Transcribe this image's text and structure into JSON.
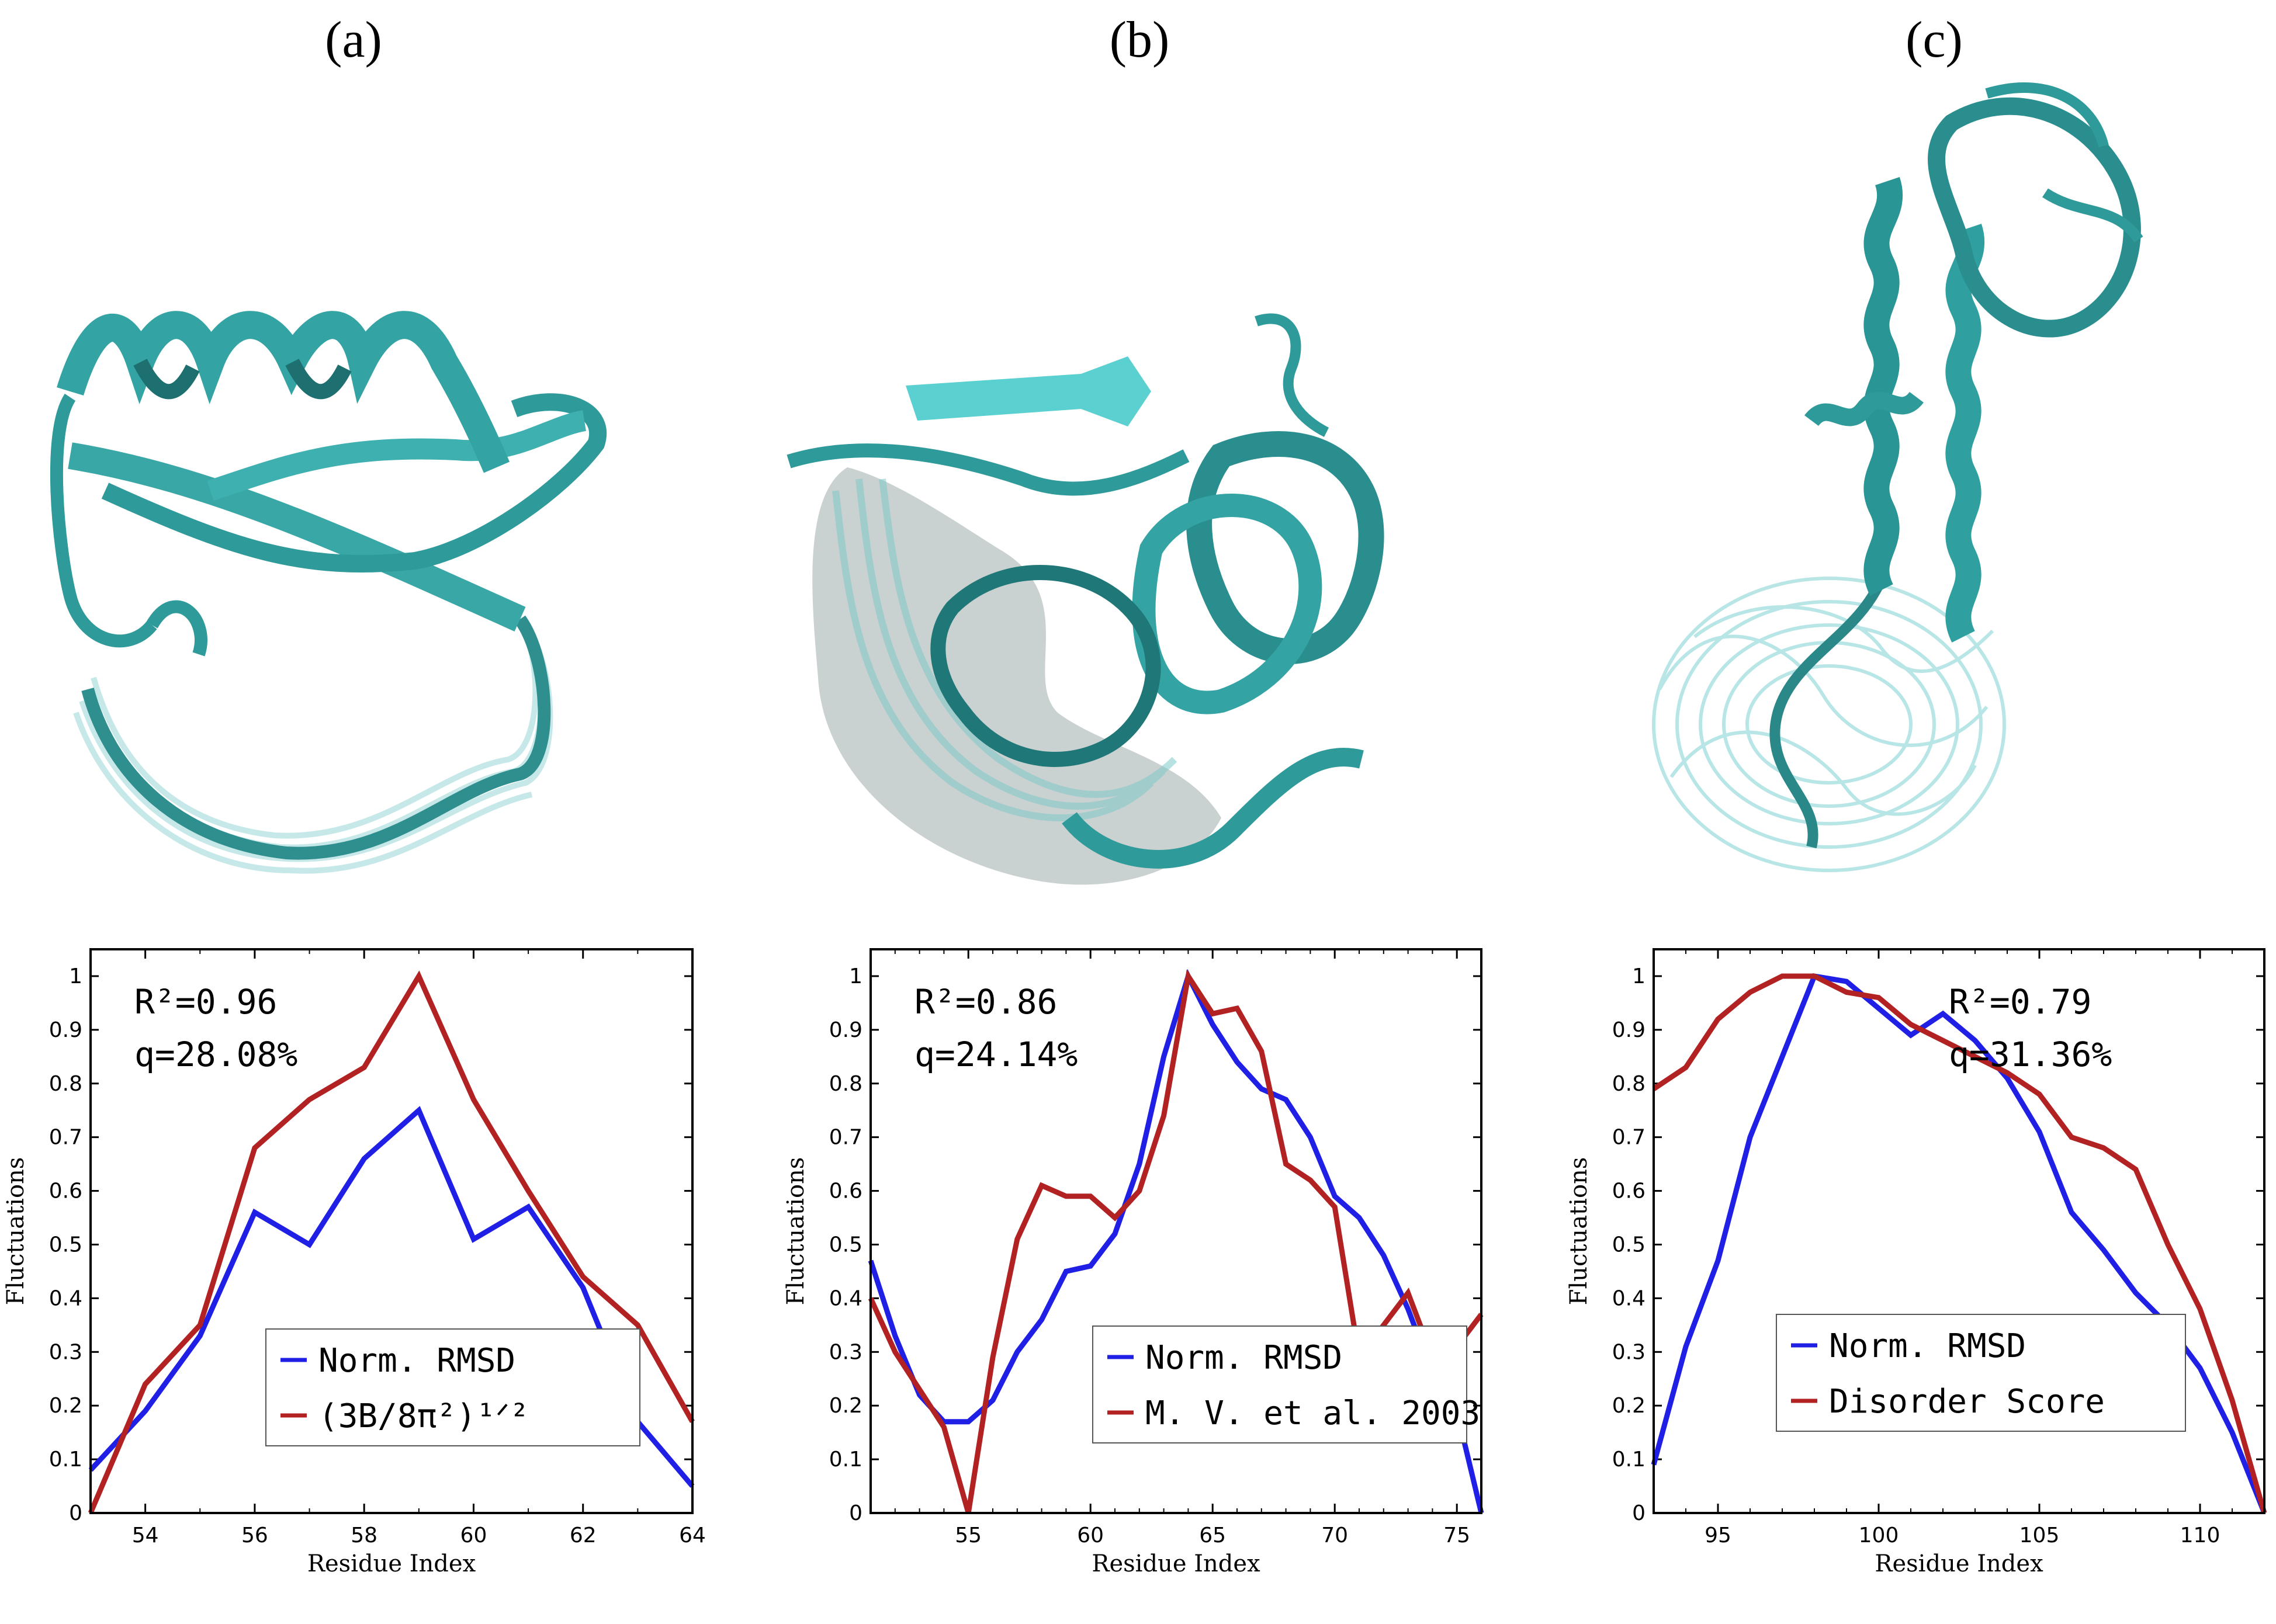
{
  "panel_labels": [
    "(a)",
    "(b)",
    "(c)"
  ],
  "colors": {
    "protein": "#2f9a9a",
    "protein_light": "#8fd4d4",
    "blue": "#1f1fe6",
    "red": "#b22222"
  },
  "chart_data": [
    {
      "type": "line",
      "xlabel": "Residue Index",
      "ylabel": "Fluctuations",
      "xlim": [
        53,
        64
      ],
      "ylim": [
        0,
        1.05
      ],
      "xticks": [
        54,
        56,
        58,
        60,
        62,
        64
      ],
      "yticks": [
        0,
        0.1,
        0.2,
        0.3,
        0.4,
        0.5,
        0.6,
        0.7,
        0.8,
        0.9,
        1
      ],
      "annotations": [
        "R²=0.96",
        "q=28.08%"
      ],
      "annotation_position": "top-left",
      "legend_position": "bottom-center",
      "series": [
        {
          "name": "Norm. RMSD",
          "color": "#1f1fe6",
          "x": [
            53,
            54,
            55,
            56,
            57,
            58,
            59,
            60,
            61,
            62,
            63,
            64
          ],
          "y": [
            0.08,
            0.19,
            0.33,
            0.56,
            0.5,
            0.66,
            0.75,
            0.51,
            0.57,
            0.42,
            0.17,
            0.05
          ]
        },
        {
          "name": "(3B/8π²)¹ᐟ²",
          "color": "#b22222",
          "x": [
            53,
            54,
            55,
            56,
            57,
            58,
            59,
            60,
            61,
            62,
            63,
            64
          ],
          "y": [
            0.0,
            0.24,
            0.35,
            0.68,
            0.77,
            0.83,
            1.0,
            0.77,
            0.6,
            0.44,
            0.35,
            0.17
          ]
        }
      ]
    },
    {
      "type": "line",
      "xlabel": "Residue Index",
      "ylabel": "Fluctuations",
      "xlim": [
        51,
        76
      ],
      "ylim": [
        0,
        1.05
      ],
      "xticks": [
        55,
        60,
        65,
        70,
        75
      ],
      "yticks": [
        0,
        0.1,
        0.2,
        0.3,
        0.4,
        0.5,
        0.6,
        0.7,
        0.8,
        0.9,
        1
      ],
      "annotations": [
        "R²=0.86",
        "q=24.14%"
      ],
      "annotation_position": "top-left",
      "legend_position": "bottom-center",
      "series": [
        {
          "name": "Norm. RMSD",
          "color": "#1f1fe6",
          "x": [
            51,
            52,
            53,
            54,
            55,
            56,
            57,
            58,
            59,
            60,
            61,
            62,
            63,
            64,
            65,
            66,
            67,
            68,
            69,
            70,
            71,
            72,
            73,
            74,
            75,
            76
          ],
          "y": [
            0.47,
            0.33,
            0.22,
            0.17,
            0.17,
            0.21,
            0.3,
            0.36,
            0.45,
            0.46,
            0.52,
            0.65,
            0.85,
            1.0,
            0.91,
            0.84,
            0.79,
            0.77,
            0.7,
            0.59,
            0.55,
            0.48,
            0.38,
            0.26,
            0.19,
            0.0
          ]
        },
        {
          "name": "M. V. et al. 2003",
          "color": "#b22222",
          "x": [
            51,
            52,
            53,
            54,
            55,
            56,
            57,
            58,
            59,
            60,
            61,
            62,
            63,
            64,
            65,
            66,
            67,
            68,
            69,
            70,
            71,
            72,
            73,
            74,
            75,
            76
          ],
          "y": [
            0.4,
            0.3,
            0.23,
            0.16,
            0.0,
            0.29,
            0.51,
            0.61,
            0.59,
            0.59,
            0.55,
            0.6,
            0.74,
            1.0,
            0.93,
            0.94,
            0.86,
            0.65,
            0.62,
            0.57,
            0.29,
            0.35,
            0.41,
            0.29,
            0.31,
            0.37
          ]
        }
      ]
    },
    {
      "type": "line",
      "xlabel": "Residue Index",
      "ylabel": "Fluctuations",
      "xlim": [
        93,
        112
      ],
      "ylim": [
        0,
        1.05
      ],
      "xticks": [
        95,
        100,
        105,
        110
      ],
      "yticks": [
        0,
        0.1,
        0.2,
        0.3,
        0.4,
        0.5,
        0.6,
        0.7,
        0.8,
        0.9,
        1
      ],
      "annotations": [
        "R²=0.79",
        "q=31.36%"
      ],
      "annotation_position": "top-right",
      "legend_position": "bottom-center",
      "series": [
        {
          "name": "Norm. RMSD",
          "color": "#1f1fe6",
          "x": [
            93,
            94,
            95,
            96,
            97,
            98,
            99,
            100,
            101,
            102,
            103,
            104,
            105,
            106,
            107,
            108,
            109,
            110,
            111,
            112
          ],
          "y": [
            0.09,
            0.31,
            0.47,
            0.7,
            0.85,
            1.0,
            0.99,
            0.94,
            0.89,
            0.93,
            0.88,
            0.81,
            0.71,
            0.56,
            0.49,
            0.41,
            0.35,
            0.27,
            0.15,
            0.0
          ]
        },
        {
          "name": "Disorder Score",
          "color": "#b22222",
          "x": [
            93,
            94,
            95,
            96,
            97,
            98,
            99,
            100,
            101,
            102,
            103,
            104,
            105,
            106,
            107,
            108,
            109,
            110,
            111,
            112
          ],
          "y": [
            0.79,
            0.83,
            0.92,
            0.97,
            1.0,
            1.0,
            0.97,
            0.96,
            0.91,
            0.88,
            0.85,
            0.82,
            0.78,
            0.7,
            0.68,
            0.64,
            0.5,
            0.38,
            0.21,
            0.0
          ]
        }
      ]
    }
  ]
}
